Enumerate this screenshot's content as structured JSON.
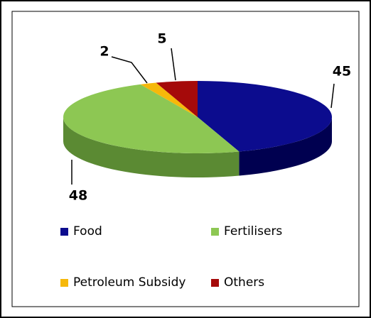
{
  "chart_data": {
    "type": "pie",
    "categories": [
      "Food",
      "Fertilisers",
      "Petroleum Subsidy",
      "Others"
    ],
    "values": [
      45,
      48,
      2,
      5
    ],
    "colors": [
      "#0c0c8e",
      "#8dc753",
      "#f6b80a",
      "#a50a0a"
    ],
    "side_colors": [
      "#000050",
      "#5b8a33",
      "#b08000",
      "#600000"
    ]
  }
}
